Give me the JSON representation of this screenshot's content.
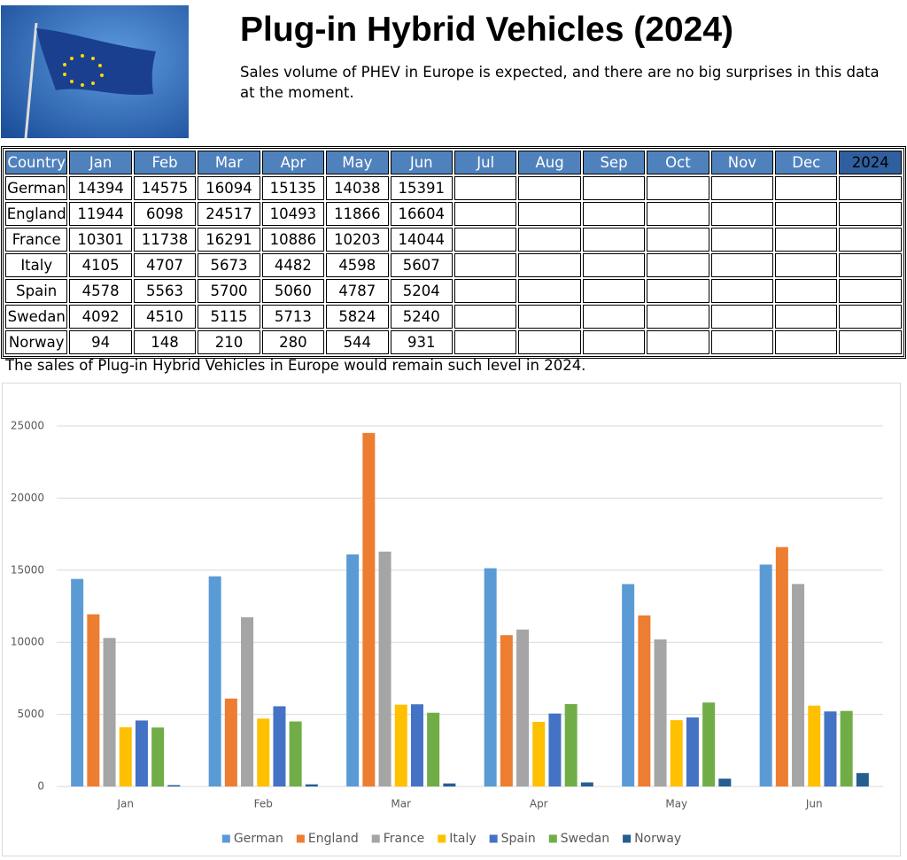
{
  "header": {
    "title": "Plug-in Hybrid Vehicles (2024)",
    "subtitle": "Sales volume of PHEV in Europe is expected, and there are no big surprises in this data at the moment."
  },
  "table": {
    "columns": [
      "Country",
      "Jan",
      "Feb",
      "Mar",
      "Apr",
      "May",
      "Jun",
      "Jul",
      "Aug",
      "Sep",
      "Oct",
      "Nov",
      "Dec",
      "2024"
    ]
  },
  "note": "The sales of Plug-in Hybrid Vehicles in Europe would remain such level in 2024.",
  "chart_data": {
    "type": "bar",
    "categories": [
      "Jan",
      "Feb",
      "Mar",
      "Apr",
      "May",
      "Jun"
    ],
    "series": [
      {
        "name": "German",
        "color": "#5b9bd5",
        "values": [
          14394,
          14575,
          16094,
          15135,
          14038,
          15391
        ]
      },
      {
        "name": "England",
        "color": "#ed7d31",
        "values": [
          11944,
          6098,
          24517,
          10493,
          11866,
          16604
        ]
      },
      {
        "name": "France",
        "color": "#a5a5a5",
        "values": [
          10301,
          11738,
          16291,
          10886,
          10203,
          14044
        ]
      },
      {
        "name": "Italy",
        "color": "#ffc000",
        "values": [
          4105,
          4707,
          5673,
          4482,
          4598,
          5607
        ]
      },
      {
        "name": "Spain",
        "color": "#4472c4",
        "values": [
          4578,
          5563,
          5700,
          5060,
          4787,
          5204
        ]
      },
      {
        "name": "Swedan",
        "color": "#70ad47",
        "values": [
          4092,
          4510,
          5115,
          5713,
          5824,
          5240
        ]
      },
      {
        "name": "Norway",
        "color": "#255e91",
        "values": [
          94,
          148,
          210,
          280,
          544,
          931
        ]
      }
    ],
    "ylim": [
      0,
      25000
    ],
    "yticks": [
      0,
      5000,
      10000,
      15000,
      20000,
      25000
    ],
    "grid": true,
    "legend": "bottom"
  }
}
